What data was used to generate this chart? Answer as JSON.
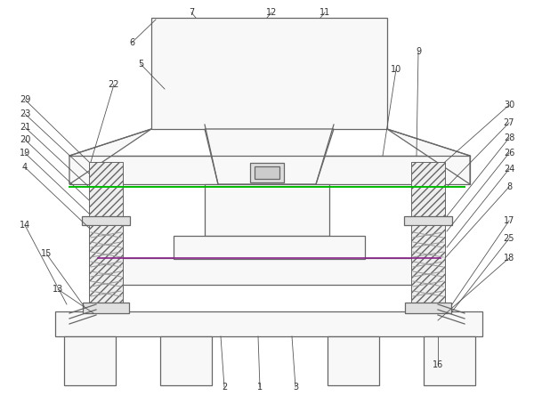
{
  "bg_color": "#ffffff",
  "line_color": "#666666",
  "green_line_color": "#00bb00",
  "purple_line_color": "#882288",
  "figsize": [
    6.0,
    4.63
  ],
  "dpi": 100
}
